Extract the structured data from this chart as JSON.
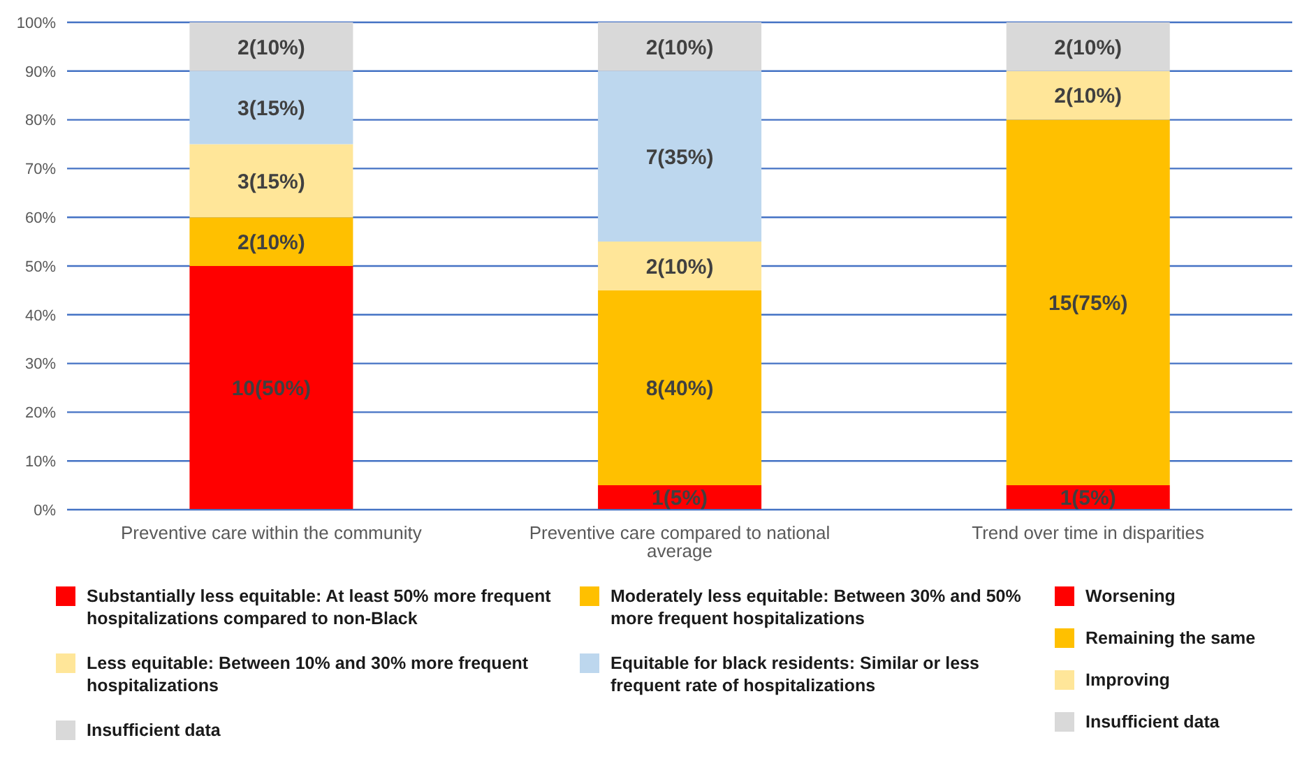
{
  "chart_data": {
    "type": "bar",
    "stacked": true,
    "categories": [
      "Preventive care within the community",
      "Preventive care compared to national average",
      "Trend over time in disparities"
    ],
    "series": [
      {
        "name": "Substantially less equitable: At least 50% more frequent hospitalizations compared to non-Black",
        "color": "#ff0000",
        "values": [
          50,
          5,
          null
        ],
        "value_labels": [
          "10(50%)",
          "1(5%)",
          null
        ]
      },
      {
        "name": "Moderately less equitable: Between 30% and 50% more frequent hospitalizations",
        "color": "#ffc000",
        "values": [
          10,
          40,
          null
        ],
        "value_labels": [
          "2(10%)",
          "8(40%)",
          null
        ]
      },
      {
        "name": "Less equitable: Between 10% and 30% more frequent hospitalizations",
        "color": "#ffe699",
        "values": [
          15,
          10,
          null
        ],
        "value_labels": [
          "3(15%)",
          "2(10%)",
          null
        ]
      },
      {
        "name": "Equitable for black residents: Similar or less frequent rate of hospitalizations",
        "color": "#bdd7ee",
        "values": [
          15,
          35,
          null
        ],
        "value_labels": [
          "3(15%)",
          "7(35%)",
          null
        ]
      },
      {
        "name": "Insufficient data",
        "color": "#d9d9d9",
        "values": [
          10,
          10,
          null
        ],
        "value_labels": [
          "2(10%)",
          "2(10%)",
          null
        ]
      },
      {
        "name": "Worsening",
        "color": "#ff0000",
        "values": [
          null,
          null,
          5
        ],
        "value_labels": [
          null,
          null,
          "1(5%)"
        ]
      },
      {
        "name": "Remaining the same",
        "color": "#ffc000",
        "values": [
          null,
          null,
          75
        ],
        "value_labels": [
          null,
          null,
          "15(75%)"
        ]
      },
      {
        "name": "Improving",
        "color": "#ffe699",
        "values": [
          null,
          null,
          10
        ],
        "value_labels": [
          null,
          null,
          "2(10%)"
        ]
      },
      {
        "name": "Insufficient data",
        "color": "#d9d9d9",
        "values": [
          null,
          null,
          10
        ],
        "value_labels": [
          null,
          null,
          "2(10%)"
        ]
      }
    ],
    "ylim": [
      0,
      100
    ],
    "yticks": [
      {
        "value": 0,
        "label": "0%"
      },
      {
        "value": 10,
        "label": "10%"
      },
      {
        "value": 20,
        "label": "20%"
      },
      {
        "value": 30,
        "label": "30%"
      },
      {
        "value": 40,
        "label": "40%"
      },
      {
        "value": 50,
        "label": "50%"
      },
      {
        "value": 60,
        "label": "60%"
      },
      {
        "value": 70,
        "label": "70%"
      },
      {
        "value": 80,
        "label": "80%"
      },
      {
        "value": 90,
        "label": "90%"
      },
      {
        "value": 100,
        "label": "100%"
      }
    ],
    "grid": "y",
    "legend": "bottom"
  }
}
